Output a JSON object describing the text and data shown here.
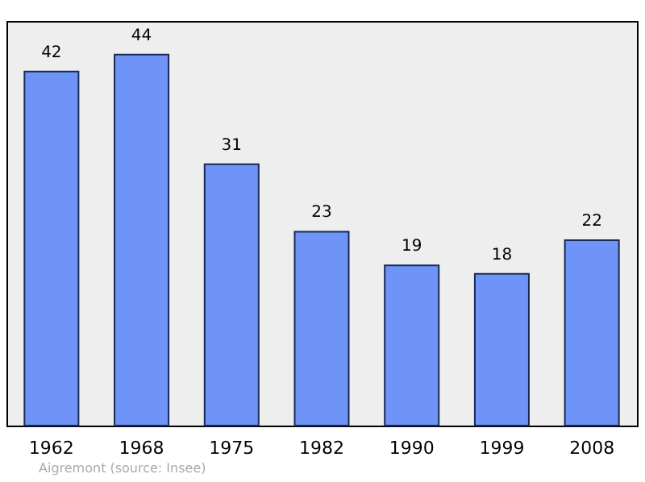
{
  "chart_data": {
    "type": "bar",
    "categories": [
      "1962",
      "1968",
      "1975",
      "1982",
      "1990",
      "1999",
      "2008"
    ],
    "values": [
      42,
      44,
      31,
      23,
      19,
      18,
      22
    ],
    "color": "#6f94f8",
    "data_labels": true,
    "ylim": [
      0,
      48
    ],
    "grid": false,
    "tick_labels": "x",
    "annotations": [
      "Aigremont   (source: Insee)"
    ]
  }
}
